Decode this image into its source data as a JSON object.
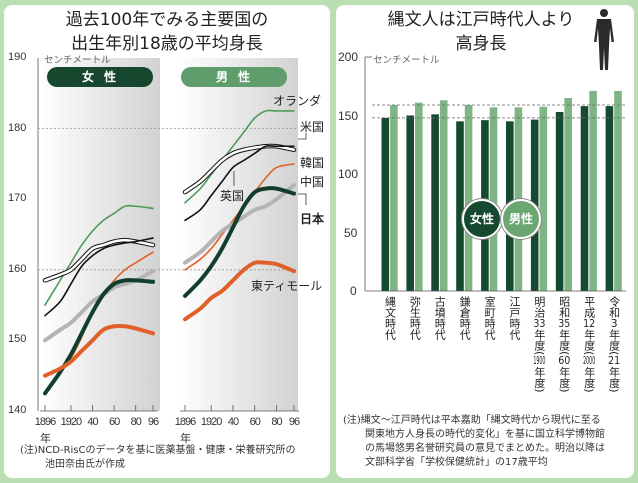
{
  "left": {
    "title_line1": "過去100年でみる主要国の",
    "title_line2": "出生年別18歳の平均身長",
    "unit": "センチメートル",
    "note_line1": "(注)NCD-RisCのデータを基に医薬基盤・健康・栄養研究所の",
    "note_line2": "池田奈由氏が作成"
  },
  "right": {
    "title_line1": "縄文人は江戸時代人より",
    "title_line2": "高身長",
    "unit": "センチメートル",
    "icon": "person-silhouette-icon",
    "note_line1": "(注)縄文～江戸時代は平本嘉助「縄文時代から現代に至る",
    "note_line2": "関東地方人身長の時代的変化」を基に国立科学博物館",
    "note_line3": "の馬場悠男名誉研究員の意見でまとめた。明治以降は",
    "note_line4": "文部科学省「学校保健統計」の17歳平均"
  },
  "chart_data": [
    {
      "type": "line",
      "title": "過去100年でみる主要国の出生年別18歳の平均身長",
      "ylabel": "センチメートル",
      "ylim": [
        140,
        190
      ],
      "yticks": [
        "140",
        "150",
        "160",
        "170",
        "180",
        "190"
      ],
      "xticks": [
        "1896",
        "1920",
        "40",
        "60",
        "80",
        "96"
      ],
      "xtick_suffix": "年",
      "grid_dotted_at": [
        160,
        180
      ],
      "x": [
        1896,
        1910,
        1920,
        1930,
        1940,
        1950,
        1960,
        1970,
        1980,
        1996
      ],
      "panels": [
        {
          "name": "女性",
          "color": "#17472f",
          "series": [
            {
              "name": "オランダ",
              "color": "#4f9a5a",
              "values": [
                155,
                158.5,
                161,
                163.5,
                165.5,
                167,
                168,
                169,
                169,
                168.7
              ]
            },
            {
              "name": "米国",
              "color": "#ffffff",
              "values": [
                158.5,
                159.3,
                160,
                161.5,
                163,
                163.5,
                164,
                164.2,
                164,
                163.5
              ]
            },
            {
              "name": "英国",
              "color": "#111111",
              "values": [
                153.5,
                155.5,
                158,
                160.5,
                162,
                163,
                163.5,
                163.8,
                164,
                164.5
              ]
            },
            {
              "name": "韓国",
              "color": "#e0602a",
              "values": [
                145,
                146,
                147.5,
                150.5,
                154,
                156.5,
                158.5,
                160,
                161,
                162.5
              ]
            },
            {
              "name": "中国",
              "color": "#b4b4b4",
              "values": [
                150,
                151.5,
                152.5,
                154,
                155.5,
                156.5,
                157.5,
                158,
                158.5,
                159.8
              ]
            },
            {
              "name": "日本",
              "color": "#123f2c",
              "values": [
                142.5,
                145.5,
                148,
                151,
                154,
                156.5,
                158,
                158.5,
                158.5,
                158.3
              ]
            },
            {
              "name": "東ティモール",
              "color": "#e0602a",
              "values": [
                145,
                146,
                147,
                148.5,
                150,
                151.5,
                152,
                152,
                151.7,
                151
              ]
            }
          ]
        },
        {
          "name": "男性",
          "color": "#5f9e6c",
          "series": [
            {
              "name": "オランダ",
              "color": "#4f9a5a",
              "values": [
                169.5,
                171.5,
                173.5,
                175.5,
                177.5,
                179.5,
                181.5,
                182.5,
                182.5,
                182.5
              ]
            },
            {
              "name": "米国",
              "color": "#ffffff",
              "values": [
                171,
                172.5,
                174,
                175.5,
                176.5,
                177,
                177.3,
                177.5,
                177.5,
                177
              ]
            },
            {
              "name": "英国",
              "color": "#111111",
              "values": [
                167,
                168.5,
                170.5,
                172.5,
                174.5,
                175.5,
                176.5,
                177.5,
                177.5,
                177.5
              ]
            },
            {
              "name": "韓国",
              "color": "#e0602a",
              "values": [
                160,
                161.5,
                163,
                165,
                167,
                169,
                171,
                173,
                174.5,
                175
              ]
            },
            {
              "name": "中国",
              "color": "#b4b4b4",
              "values": [
                161,
                162.5,
                164,
                165.5,
                166.5,
                167.5,
                168.5,
                169,
                170,
                172
              ]
            },
            {
              "name": "日本",
              "color": "#123f2c",
              "values": [
                156.3,
                158.5,
                160.5,
                163,
                166,
                169,
                171,
                171.5,
                171.5,
                170.8
              ]
            },
            {
              "name": "東ティモール",
              "color": "#e0602a",
              "values": [
                153,
                154.5,
                156,
                157,
                158.5,
                160,
                161,
                161,
                160.8,
                159.8
              ]
            }
          ]
        }
      ]
    },
    {
      "type": "bar",
      "title": "縄文人は江戸時代人より高身長",
      "ylabel": "センチメートル",
      "ylim": [
        0,
        200
      ],
      "yticks": [
        "0",
        "50",
        "100",
        "150",
        "200"
      ],
      "categories": [
        {
          "label": "縄文時代",
          "sub": ""
        },
        {
          "label": "弥生時代",
          "sub": ""
        },
        {
          "label": "古墳時代",
          "sub": ""
        },
        {
          "label": "鎌倉時代",
          "sub": ""
        },
        {
          "label": "室町時代",
          "sub": ""
        },
        {
          "label": "江戸時代",
          "sub": ""
        },
        {
          "label": "明治33年度",
          "sub": "(1900年度)"
        },
        {
          "label": "昭和35年度",
          "sub": "(60年度)"
        },
        {
          "label": "平成12年度",
          "sub": "(2000年度)"
        },
        {
          "label": "令和3年度",
          "sub": "(21年度)"
        }
      ],
      "dashed_reference_lines": [
        148,
        159
      ],
      "series": [
        {
          "name": "女性",
          "color": "#154a30",
          "values": [
            148,
            150,
            151,
            145,
            146,
            145,
            146.5,
            153,
            158,
            158
          ]
        },
        {
          "name": "男性",
          "color": "#7fb585",
          "values": [
            159,
            161,
            163,
            159,
            157,
            157,
            157.5,
            165,
            171,
            171
          ]
        }
      ]
    }
  ]
}
